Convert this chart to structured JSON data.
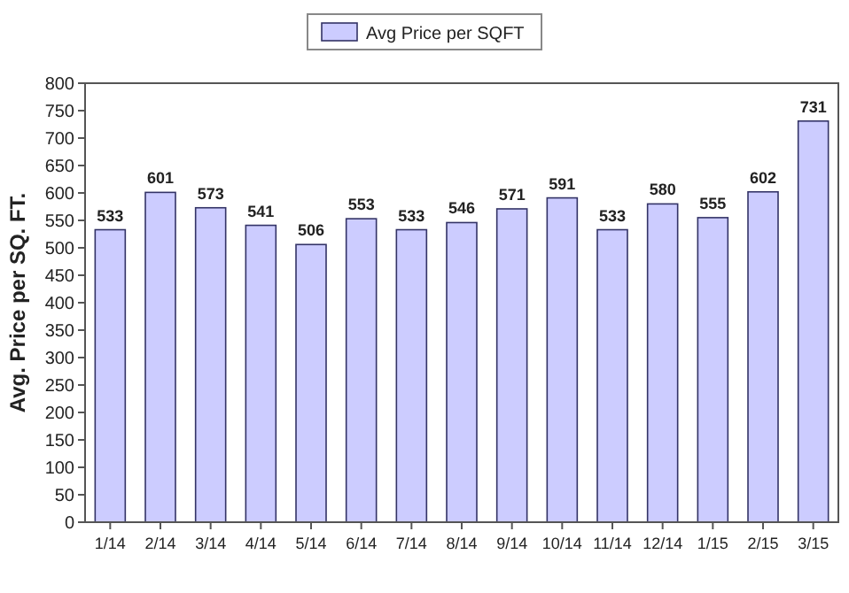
{
  "chart_data": {
    "type": "bar",
    "ylabel": "Avg. Price per SQ. FT.",
    "categories": [
      "1/14",
      "2/14",
      "3/14",
      "4/14",
      "5/14",
      "6/14",
      "7/14",
      "8/14",
      "9/14",
      "10/14",
      "11/14",
      "12/14",
      "1/15",
      "2/15",
      "3/15"
    ],
    "series": [
      {
        "name": "Avg Price per SQFT",
        "color": "#ccccff",
        "values": [
          533,
          601,
          573,
          541,
          506,
          553,
          533,
          546,
          571,
          591,
          533,
          580,
          555,
          602,
          731
        ]
      }
    ],
    "ylim": [
      0,
      800
    ],
    "yticks": [
      0,
      50,
      100,
      150,
      200,
      250,
      300,
      350,
      400,
      450,
      500,
      550,
      600,
      650,
      700,
      750,
      800
    ],
    "data_labels": true,
    "legend": "top",
    "grid": false
  }
}
